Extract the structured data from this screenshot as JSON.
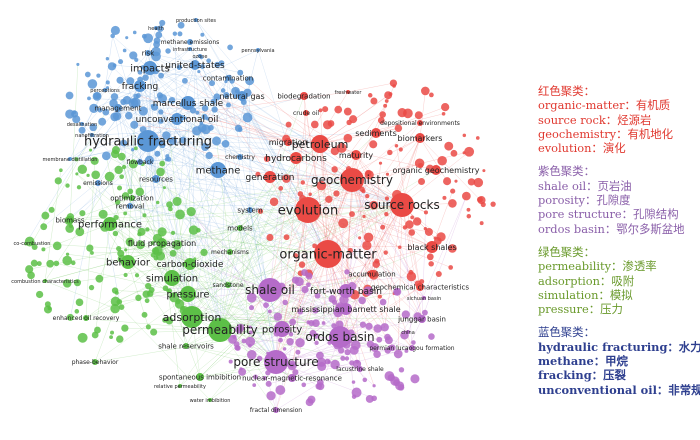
{
  "network": {
    "colors": {
      "red": "#ea4a45",
      "purple": "#b56bc9",
      "green": "#5cbf47",
      "blue": "#5b97d6"
    },
    "labels": [
      {
        "text": "production sites",
        "c": "blue"
      },
      {
        "text": "health",
        "c": "blue"
      },
      {
        "text": "methane emissions",
        "c": "blue"
      },
      {
        "text": "infrastructure",
        "c": "blue"
      },
      {
        "text": "pennsylvania",
        "c": "blue"
      },
      {
        "text": "ozone",
        "c": "blue"
      },
      {
        "text": "risk",
        "c": "blue"
      },
      {
        "text": "united-states",
        "c": "blue"
      },
      {
        "text": "impacts",
        "c": "blue"
      },
      {
        "text": "perceptions",
        "c": "blue"
      },
      {
        "text": "contamination",
        "c": "blue"
      },
      {
        "text": "fracking",
        "c": "blue"
      },
      {
        "text": "natural gas",
        "c": "blue"
      },
      {
        "text": "marcellus shale",
        "c": "blue"
      },
      {
        "text": "management",
        "c": "blue"
      },
      {
        "text": "unconventional oil",
        "c": "blue"
      },
      {
        "text": "desalination",
        "c": "blue"
      },
      {
        "text": "hydraulic fracturing",
        "c": "blue"
      },
      {
        "text": "nanofiltration",
        "c": "blue"
      },
      {
        "text": "membrane distillation",
        "c": "blue"
      },
      {
        "text": "flowback",
        "c": "blue"
      },
      {
        "text": "methane",
        "c": "blue"
      },
      {
        "text": "chemistry",
        "c": "blue"
      },
      {
        "text": "resources",
        "c": "blue"
      },
      {
        "text": "emissions",
        "c": "blue"
      },
      {
        "text": "system",
        "c": "blue"
      },
      {
        "text": "removal",
        "c": "blue"
      },
      {
        "text": "performance",
        "c": "green"
      },
      {
        "text": "biomass",
        "c": "green"
      },
      {
        "text": "optimization",
        "c": "green"
      },
      {
        "text": "fluid propagation",
        "c": "green"
      },
      {
        "text": "behavior",
        "c": "green"
      },
      {
        "text": "carbon-dioxide",
        "c": "green"
      },
      {
        "text": "simulation",
        "c": "green"
      },
      {
        "text": "pressure",
        "c": "green"
      },
      {
        "text": "adsorption",
        "c": "green"
      },
      {
        "text": "permeability",
        "c": "green"
      },
      {
        "text": "co-combustion",
        "c": "green"
      },
      {
        "text": "combustion characteristics",
        "c": "green"
      },
      {
        "text": "enhanced oil recovery",
        "c": "green"
      },
      {
        "text": "phase-behavior",
        "c": "green"
      },
      {
        "text": "shale reservoirs",
        "c": "green"
      },
      {
        "text": "spontaneous imbibition",
        "c": "green"
      },
      {
        "text": "relative permeability",
        "c": "green"
      },
      {
        "text": "water imbibition",
        "c": "green"
      },
      {
        "text": "mechanisms",
        "c": "green"
      },
      {
        "text": "models",
        "c": "green"
      },
      {
        "text": "sandstone",
        "c": "green"
      },
      {
        "text": "biodegradation",
        "c": "red"
      },
      {
        "text": "petroleum",
        "c": "red"
      },
      {
        "text": "sediments",
        "c": "red"
      },
      {
        "text": "biomarkers",
        "c": "red"
      },
      {
        "text": "migration",
        "c": "red"
      },
      {
        "text": "hydrocarbons",
        "c": "red"
      },
      {
        "text": "maturity",
        "c": "red"
      },
      {
        "text": "geochemistry",
        "c": "red"
      },
      {
        "text": "organic geochemistry",
        "c": "red"
      },
      {
        "text": "generation",
        "c": "red"
      },
      {
        "text": "evolution",
        "c": "red"
      },
      {
        "text": "source rocks",
        "c": "red"
      },
      {
        "text": "organic-matter",
        "c": "red"
      },
      {
        "text": "black shales",
        "c": "red"
      },
      {
        "text": "accumulation",
        "c": "red"
      },
      {
        "text": "geochemical characteristics",
        "c": "red"
      },
      {
        "text": "crude oil",
        "c": "red"
      },
      {
        "text": "depositional environments",
        "c": "red"
      },
      {
        "text": "freshwater",
        "c": "red"
      },
      {
        "text": "shale oil",
        "c": "purple"
      },
      {
        "text": "fort-worth basin",
        "c": "purple"
      },
      {
        "text": "mississippian barnett shale",
        "c": "purple"
      },
      {
        "text": "porosity",
        "c": "purple"
      },
      {
        "text": "ordos basin",
        "c": "purple"
      },
      {
        "text": "pore structure",
        "c": "purple"
      },
      {
        "text": "nuclear-magnetic-resonance",
        "c": "purple"
      },
      {
        "text": "lacustrine shale",
        "c": "purple"
      },
      {
        "text": "junggar basin",
        "c": "purple"
      },
      {
        "text": "permian lucaogou formation",
        "c": "purple"
      },
      {
        "text": "fractal dimension",
        "c": "purple"
      },
      {
        "text": "china",
        "c": "purple"
      },
      {
        "text": "sichuan basin",
        "c": "purple"
      }
    ]
  },
  "legend": [
    {
      "header": "红色聚类：",
      "color": "red",
      "items": [
        "organic-matter：有机质",
        "source rock：烃源岩",
        "geochemistry：有机地化",
        "evolution：演化"
      ]
    },
    {
      "header": "紫色聚类：",
      "color": "purple",
      "items": [
        "shale oil：页岩油",
        "porosity：孔隙度",
        "pore structure：孔隙结构",
        "ordos basin：鄂尔多斯盆地"
      ]
    },
    {
      "header": "绿色聚类：",
      "color": "green",
      "items": [
        "permeability：渗透率",
        "adsorption：吸附",
        "simulation：模拟",
        "pressure：压力"
      ]
    },
    {
      "header": "蓝色聚类：",
      "color": "blue",
      "items": [
        "hydraulic fracturing：水力压裂",
        "methane：甲烷",
        "fracking：压裂",
        "unconventional oil：非常规石油"
      ]
    }
  ]
}
